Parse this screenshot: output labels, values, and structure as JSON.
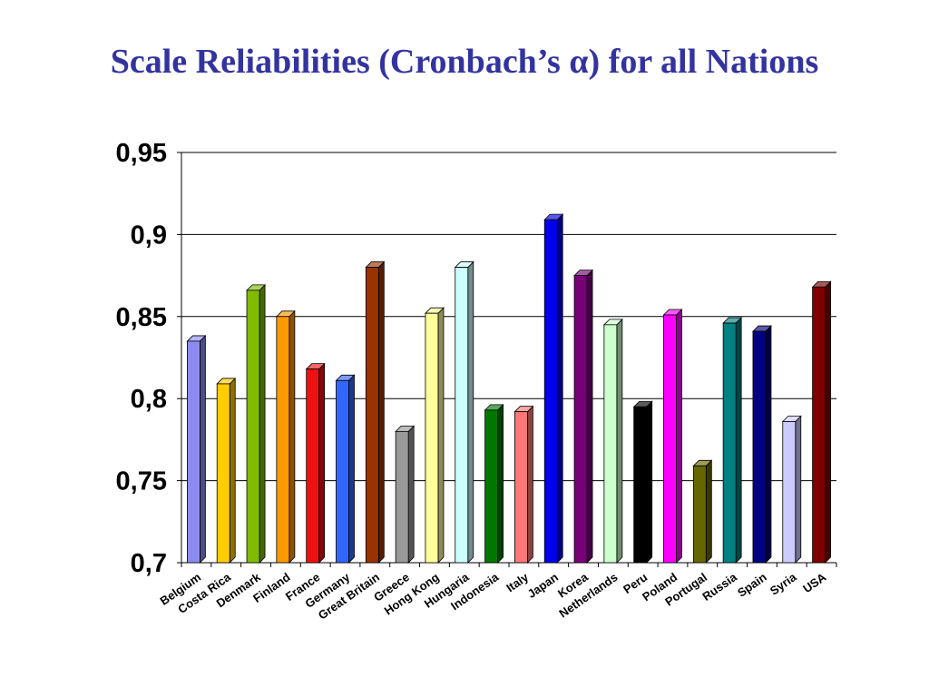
{
  "slide": {
    "title": "Scale Reliabilities (Cronbach’s α) for all Nations"
  },
  "chart_data": {
    "type": "bar",
    "title": "",
    "xlabel": "",
    "ylabel": "",
    "ylim": [
      0.7,
      0.95
    ],
    "y_ticks": [
      0.7,
      0.75,
      0.8,
      0.85,
      0.9,
      0.95
    ],
    "y_tick_labels": [
      "0,7",
      "0,75",
      "0,8",
      "0,85",
      "0,9",
      "0,95"
    ],
    "grid": "horizontal",
    "legend": "none",
    "categories": [
      "Belgium",
      "Costa Rica",
      "Denmark",
      "Finland",
      "France",
      "Germany",
      "Great Britain",
      "Greece",
      "Hong Kong",
      "Hungaria",
      "Indonesia",
      "Italy",
      "Japan",
      "Korea",
      "Netherlands",
      "Peru",
      "Poland",
      "Portugal",
      "Russia",
      "Spain",
      "Syria",
      "USA"
    ],
    "values": [
      0.835,
      0.809,
      0.866,
      0.85,
      0.818,
      0.811,
      0.88,
      0.78,
      0.852,
      0.88,
      0.793,
      0.792,
      0.909,
      0.875,
      0.845,
      0.795,
      0.851,
      0.759,
      0.846,
      0.841,
      0.786,
      0.868
    ],
    "colors": [
      "#8c8cf0",
      "#ffcc00",
      "#80bb00",
      "#ff9900",
      "#ee1111",
      "#3366ff",
      "#993300",
      "#999999",
      "#ffff99",
      "#ccffff",
      "#007700",
      "#ff7777",
      "#0000ee",
      "#770077",
      "#ccffcc",
      "#000000",
      "#ff00ff",
      "#666600",
      "#008080",
      "#000080",
      "#ccccff",
      "#800000"
    ]
  }
}
